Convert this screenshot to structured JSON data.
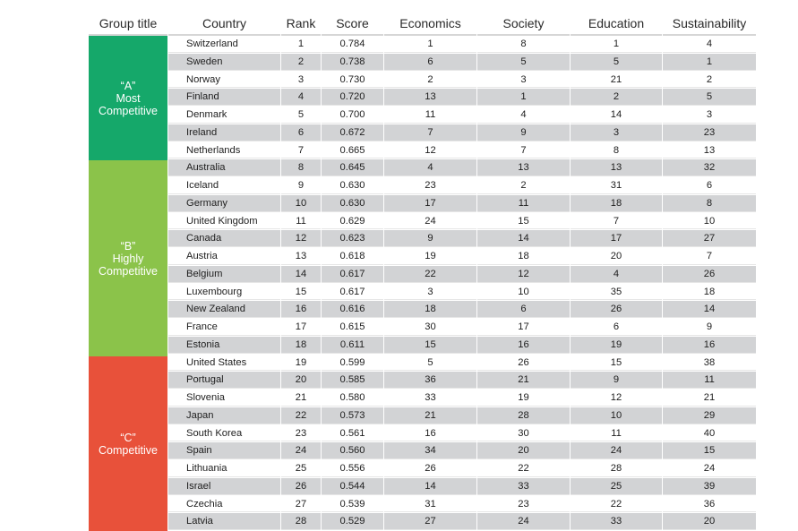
{
  "colors": {
    "group_a": "#15a86a",
    "group_b": "#8bc34a",
    "group_c": "#e8513a",
    "row_shade": "#d2d3d5",
    "header_rule": "#d6d6d6"
  },
  "columns": [
    {
      "key": "group",
      "label": "Group title"
    },
    {
      "key": "country",
      "label": "Country"
    },
    {
      "key": "rank",
      "label": "Rank"
    },
    {
      "key": "score",
      "label": "Score"
    },
    {
      "key": "economics",
      "label": "Economics"
    },
    {
      "key": "society",
      "label": "Society"
    },
    {
      "key": "education",
      "label": "Education"
    },
    {
      "key": "sustainability",
      "label": "Sustainability"
    }
  ],
  "groups": [
    {
      "id": "A",
      "line1": "“A”",
      "line2": "Most",
      "line3": "Competitive",
      "first_rank": 1,
      "last_rank": 7
    },
    {
      "id": "B",
      "line1": "“B”",
      "line2": "Highly",
      "line3": "Competitive",
      "first_rank": 8,
      "last_rank": 18
    },
    {
      "id": "C",
      "line1": "“C”",
      "line2": "",
      "line3": "Competitive",
      "first_rank": 19,
      "last_rank": 28
    }
  ],
  "rows": [
    {
      "country": "Switzerland",
      "rank": "1",
      "score": "0.784",
      "economics": "1",
      "society": "8",
      "education": "1",
      "sustainability": "4"
    },
    {
      "country": "Sweden",
      "rank": "2",
      "score": "0.738",
      "economics": "6",
      "society": "5",
      "education": "5",
      "sustainability": "1"
    },
    {
      "country": "Norway",
      "rank": "3",
      "score": "0.730",
      "economics": "2",
      "society": "3",
      "education": "21",
      "sustainability": "2"
    },
    {
      "country": "Finland",
      "rank": "4",
      "score": "0.720",
      "economics": "13",
      "society": "1",
      "education": "2",
      "sustainability": "5"
    },
    {
      "country": "Denmark",
      "rank": "5",
      "score": "0.700",
      "economics": "11",
      "society": "4",
      "education": "14",
      "sustainability": "3"
    },
    {
      "country": "Ireland",
      "rank": "6",
      "score": "0.672",
      "economics": "7",
      "society": "9",
      "education": "3",
      "sustainability": "23"
    },
    {
      "country": "Netherlands",
      "rank": "7",
      "score": "0.665",
      "economics": "12",
      "society": "7",
      "education": "8",
      "sustainability": "13"
    },
    {
      "country": "Australia",
      "rank": "8",
      "score": "0.645",
      "economics": "4",
      "society": "13",
      "education": "13",
      "sustainability": "32"
    },
    {
      "country": "Iceland",
      "rank": "9",
      "score": "0.630",
      "economics": "23",
      "society": "2",
      "education": "31",
      "sustainability": "6"
    },
    {
      "country": "Germany",
      "rank": "10",
      "score": "0.630",
      "economics": "17",
      "society": "11",
      "education": "18",
      "sustainability": "8"
    },
    {
      "country": "United Kingdom",
      "rank": "11",
      "score": "0.629",
      "economics": "24",
      "society": "15",
      "education": "7",
      "sustainability": "10"
    },
    {
      "country": "Canada",
      "rank": "12",
      "score": "0.623",
      "economics": "9",
      "society": "14",
      "education": "17",
      "sustainability": "27"
    },
    {
      "country": "Austria",
      "rank": "13",
      "score": "0.618",
      "economics": "19",
      "society": "18",
      "education": "20",
      "sustainability": "7"
    },
    {
      "country": "Belgium",
      "rank": "14",
      "score": "0.617",
      "economics": "22",
      "society": "12",
      "education": "4",
      "sustainability": "26"
    },
    {
      "country": "Luxembourg",
      "rank": "15",
      "score": "0.617",
      "economics": "3",
      "society": "10",
      "education": "35",
      "sustainability": "18"
    },
    {
      "country": "New Zealand",
      "rank": "16",
      "score": "0.616",
      "economics": "18",
      "society": "6",
      "education": "26",
      "sustainability": "14"
    },
    {
      "country": "France",
      "rank": "17",
      "score": "0.615",
      "economics": "30",
      "society": "17",
      "education": "6",
      "sustainability": "9"
    },
    {
      "country": "Estonia",
      "rank": "18",
      "score": "0.611",
      "economics": "15",
      "society": "16",
      "education": "19",
      "sustainability": "16"
    },
    {
      "country": "United States",
      "rank": "19",
      "score": "0.599",
      "economics": "5",
      "society": "26",
      "education": "15",
      "sustainability": "38"
    },
    {
      "country": "Portugal",
      "rank": "20",
      "score": "0.585",
      "economics": "36",
      "society": "21",
      "education": "9",
      "sustainability": "11"
    },
    {
      "country": "Slovenia",
      "rank": "21",
      "score": "0.580",
      "economics": "33",
      "society": "19",
      "education": "12",
      "sustainability": "21"
    },
    {
      "country": "Japan",
      "rank": "22",
      "score": "0.573",
      "economics": "21",
      "society": "28",
      "education": "10",
      "sustainability": "29"
    },
    {
      "country": "South Korea",
      "rank": "23",
      "score": "0.561",
      "economics": "16",
      "society": "30",
      "education": "11",
      "sustainability": "40"
    },
    {
      "country": "Spain",
      "rank": "24",
      "score": "0.560",
      "economics": "34",
      "society": "20",
      "education": "24",
      "sustainability": "15"
    },
    {
      "country": "Lithuania",
      "rank": "25",
      "score": "0.556",
      "economics": "26",
      "society": "22",
      "education": "28",
      "sustainability": "24"
    },
    {
      "country": "Israel",
      "rank": "26",
      "score": "0.544",
      "economics": "14",
      "society": "33",
      "education": "25",
      "sustainability": "39"
    },
    {
      "country": "Czechia",
      "rank": "27",
      "score": "0.539",
      "economics": "31",
      "society": "23",
      "education": "22",
      "sustainability": "36"
    },
    {
      "country": "Latvia",
      "rank": "28",
      "score": "0.529",
      "economics": "27",
      "society": "24",
      "education": "33",
      "sustainability": "20"
    }
  ]
}
